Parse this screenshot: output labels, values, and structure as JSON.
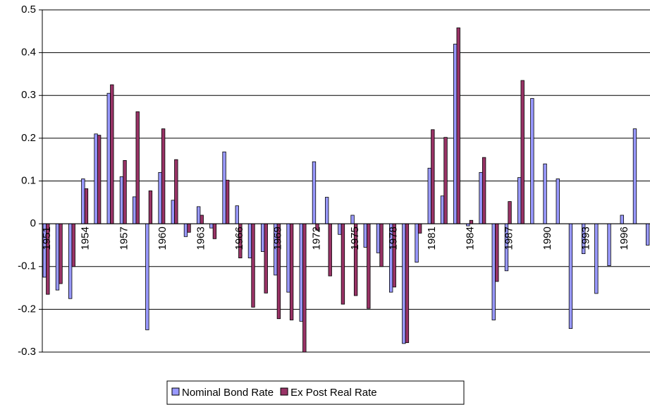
{
  "chart_data": {
    "type": "bar",
    "categories": [
      "1951",
      null,
      null,
      "1954",
      null,
      null,
      "1957",
      null,
      null,
      "1960",
      null,
      null,
      "1963",
      null,
      null,
      "1966",
      null,
      null,
      "1969",
      null,
      null,
      "1972",
      null,
      null,
      "1975",
      null,
      null,
      "1978",
      null,
      null,
      "1981",
      null,
      null,
      "1984",
      null,
      null,
      "1987",
      null,
      null,
      "1990",
      null,
      null,
      "1993",
      null,
      null,
      "1996",
      null,
      null
    ],
    "series": [
      {
        "name": "Nominal Bond Rate",
        "color": "#9999ff",
        "values": [
          -0.125,
          -0.155,
          -0.175,
          0.105,
          0.21,
          0.305,
          0.11,
          0.063,
          -0.248,
          0.12,
          0.055,
          -0.03,
          0.04,
          -0.01,
          0.168,
          0.042,
          -0.08,
          -0.065,
          -0.12,
          -0.16,
          -0.228,
          0.145,
          0.062,
          -0.025,
          0.02,
          -0.055,
          -0.068,
          -0.16,
          -0.28,
          -0.09,
          0.13,
          0.065,
          0.42,
          -0.005,
          0.12,
          -0.225,
          -0.11,
          0.108,
          0.293,
          0.14,
          0.105,
          -0.245,
          -0.07,
          -0.163,
          -0.098,
          0.02,
          0.222,
          -0.05
        ]
      },
      {
        "name": "Ex Post Real Rate",
        "color": "#993366",
        "values": [
          -0.165,
          -0.14,
          -0.1,
          0.082,
          0.207,
          0.325,
          0.148,
          0.262,
          0.077,
          0.222,
          0.15,
          -0.02,
          0.02,
          -0.035,
          0.102,
          -0.08,
          -0.195,
          -0.162,
          -0.222,
          -0.225,
          -0.3,
          -0.015,
          -0.122,
          -0.188,
          -0.168,
          -0.198,
          -0.1,
          -0.148,
          -0.278,
          -0.022,
          0.22,
          0.202,
          0.458,
          0.008,
          0.155,
          -0.135,
          0.052,
          0.335,
          null,
          null,
          null,
          null,
          null,
          null,
          null,
          null,
          null,
          null
        ]
      }
    ],
    "ylim": [
      -0.3,
      0.5
    ],
    "yticks": [
      -0.3,
      -0.2,
      -0.1,
      0,
      0.1,
      0.2,
      0.3,
      0.4,
      0.5
    ],
    "grid": true,
    "legend": "bottom"
  }
}
